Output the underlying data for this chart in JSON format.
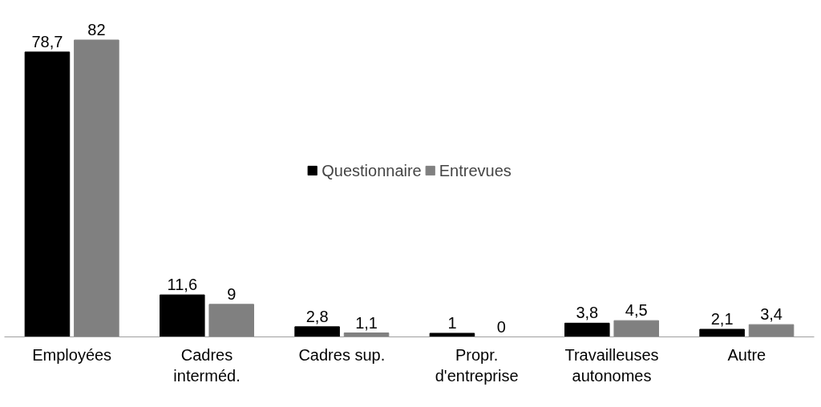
{
  "chart_data": {
    "type": "bar",
    "categories": [
      "Employées",
      "Cadres\ninterméd.",
      "Cadres sup.",
      "Propr.\nd'entreprise",
      "Travailleuses\nautonomes",
      "Autre"
    ],
    "series": [
      {
        "name": "Questionnaire",
        "color": "#000000",
        "values": [
          78.7,
          11.6,
          2.8,
          1,
          3.8,
          2.1
        ],
        "value_labels": [
          "78,7",
          "11,6",
          "2,8",
          "1",
          "3,8",
          "2,1"
        ]
      },
      {
        "name": "Entrevues",
        "color": "#808080",
        "values": [
          82,
          9,
          1.1,
          0,
          4.5,
          3.4
        ],
        "value_labels": [
          "82",
          "9",
          "1,1",
          "0",
          "4,5",
          "3,4"
        ]
      }
    ],
    "legend": "center",
    "grid": false
  }
}
